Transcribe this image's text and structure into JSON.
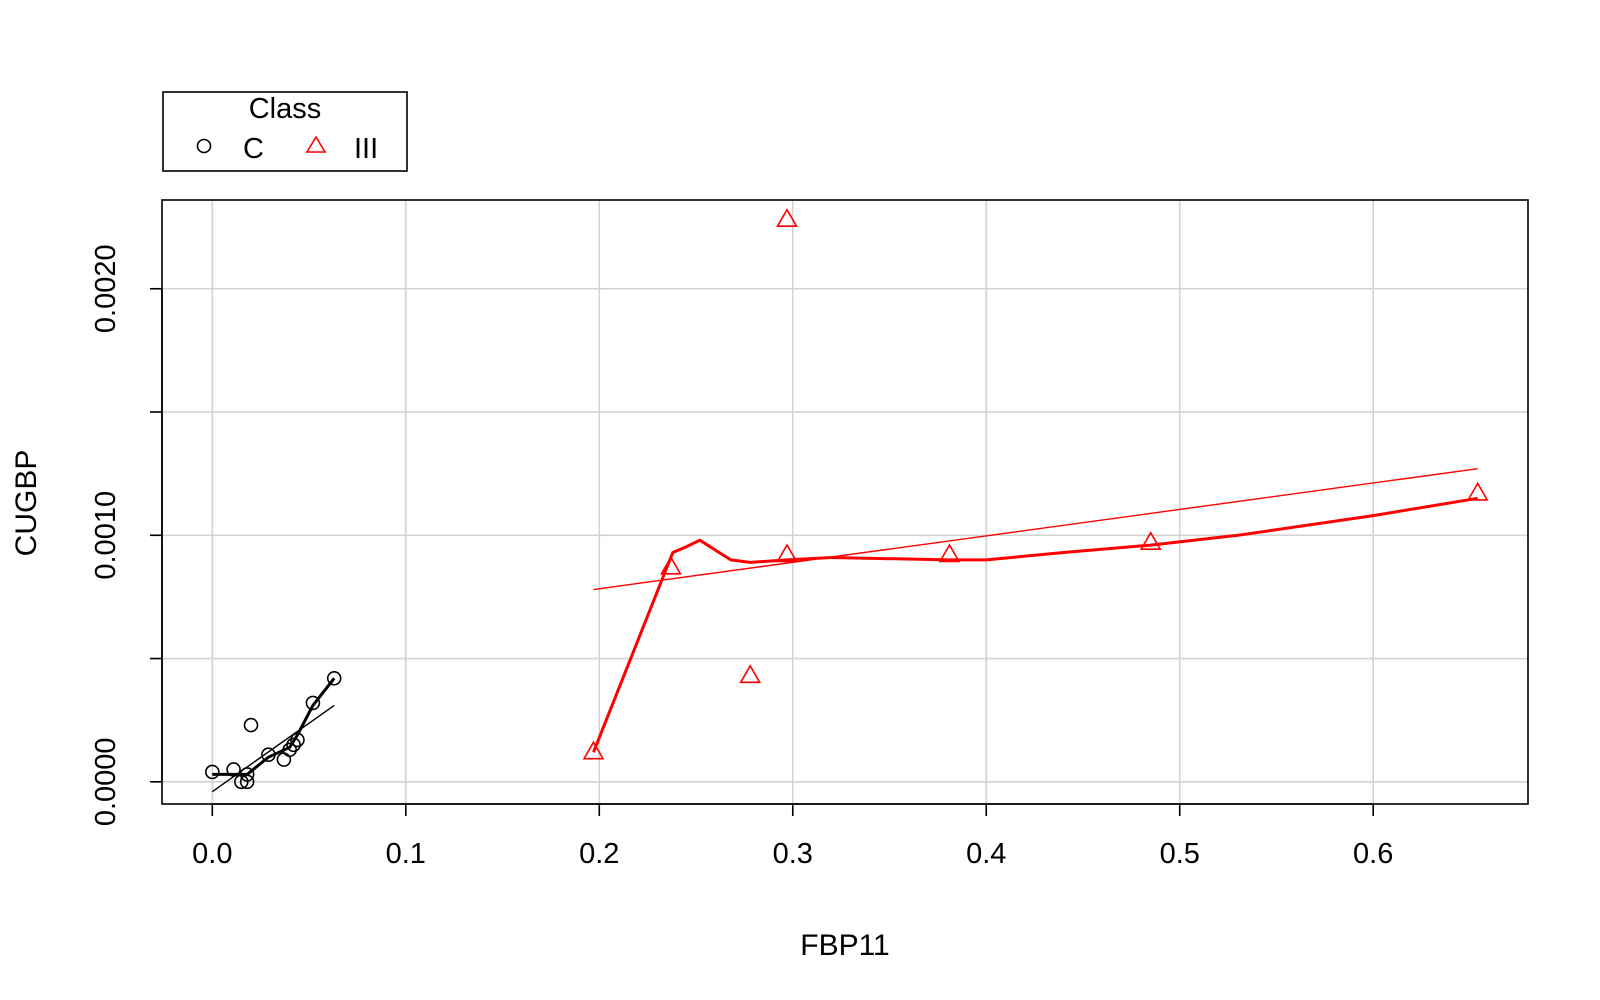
{
  "chart_data": {
    "type": "scatter",
    "xlabel": "FBP11",
    "ylabel": "CUGBP",
    "xlim": [
      -0.026,
      0.68
    ],
    "ylim": [
      -9e-05,
      0.00236
    ],
    "x_ticks": [
      "0.0",
      "0.1",
      "0.2",
      "0.3",
      "0.4",
      "0.5",
      "0.6"
    ],
    "x_tick_values": [
      0.0,
      0.1,
      0.2,
      0.3,
      0.4,
      0.5,
      0.6
    ],
    "y_ticks": [
      "0.0000",
      "0.0010",
      "0.0020"
    ],
    "y_tick_values": [
      0.0,
      0.001,
      0.002
    ],
    "y_grid_values": [
      0.0,
      0.0005,
      0.001,
      0.0015,
      0.002
    ],
    "grid": true,
    "legend": {
      "title": "Class",
      "placement": "top-left, outside plot",
      "entries": [
        {
          "label": "C",
          "marker": "circle",
          "color": "#000000"
        },
        {
          "label": "III",
          "marker": "triangle",
          "color": "#ff0000"
        }
      ]
    },
    "series": [
      {
        "name": "C",
        "color": "#000000",
        "marker": "circle",
        "points": [
          [
            0.0,
            4e-05
          ],
          [
            0.011,
            5e-05
          ],
          [
            0.015,
            0.0
          ],
          [
            0.018,
            0.0
          ],
          [
            0.018,
            3e-05
          ],
          [
            0.02,
            0.00023
          ],
          [
            0.029,
            0.00011
          ],
          [
            0.037,
            9e-05
          ],
          [
            0.04,
            0.00013
          ],
          [
            0.042,
            0.00015
          ],
          [
            0.044,
            0.00017
          ],
          [
            0.052,
            0.00032
          ],
          [
            0.063,
            0.00042
          ]
        ],
        "linear_fit": [
          [
            0.0,
            -4e-05
          ],
          [
            0.063,
            0.00031
          ]
        ],
        "smooth_fit": [
          [
            0.0,
            3e-05
          ],
          [
            0.018,
            3e-05
          ],
          [
            0.029,
            0.0001
          ],
          [
            0.04,
            0.00014
          ],
          [
            0.044,
            0.00019
          ],
          [
            0.052,
            0.00031
          ],
          [
            0.063,
            0.00042
          ]
        ]
      },
      {
        "name": "III",
        "color": "#ff0000",
        "marker": "triangle",
        "points": [
          [
            0.197,
            0.00012
          ],
          [
            0.237,
            0.00087
          ],
          [
            0.278,
            0.00043
          ],
          [
            0.297,
            0.00228
          ],
          [
            0.297,
            0.00092
          ],
          [
            0.381,
            0.00092
          ],
          [
            0.485,
            0.00097
          ],
          [
            0.654,
            0.00117
          ]
        ],
        "linear_fit": [
          [
            0.197,
            0.00078
          ],
          [
            0.654,
            0.00127
          ]
        ],
        "smooth_fit": [
          [
            0.197,
            0.00012
          ],
          [
            0.238,
            0.00093
          ],
          [
            0.244,
            0.00095
          ],
          [
            0.252,
            0.00098
          ],
          [
            0.26,
            0.00094
          ],
          [
            0.268,
            0.0009
          ],
          [
            0.278,
            0.00089
          ],
          [
            0.297,
            0.0009
          ],
          [
            0.32,
            0.00091
          ],
          [
            0.381,
            0.0009
          ],
          [
            0.4,
            0.0009
          ],
          [
            0.44,
            0.00093
          ],
          [
            0.485,
            0.00096
          ],
          [
            0.53,
            0.001
          ],
          [
            0.6,
            0.00108
          ],
          [
            0.654,
            0.00115
          ]
        ]
      }
    ]
  }
}
